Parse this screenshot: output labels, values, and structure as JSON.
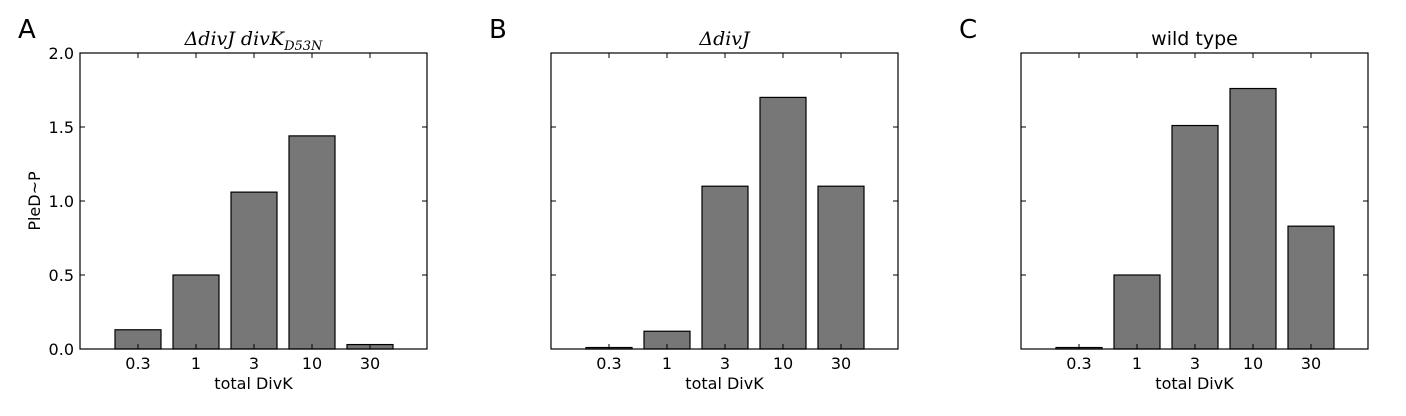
{
  "chart_data": [
    {
      "type": "bar",
      "panel_letter": "A",
      "title": "ΔdivJ divK",
      "title_subscript": "D53N",
      "xlabel": "total DivK",
      "ylabel": "PleD~P",
      "categories": [
        "0.3",
        "1",
        "3",
        "10",
        "30"
      ],
      "values": [
        0.13,
        0.5,
        1.06,
        1.44,
        0.03
      ],
      "ylim": [
        0,
        2.0
      ],
      "yticks": [
        "0.0",
        "0.5",
        "1.0",
        "1.5",
        "2.0"
      ],
      "bar_color": "#777777",
      "grid": false
    },
    {
      "type": "bar",
      "panel_letter": "B",
      "title": "ΔdivJ",
      "xlabel": "total DivK",
      "ylabel": "",
      "categories": [
        "0.3",
        "1",
        "3",
        "10",
        "30"
      ],
      "values": [
        0.01,
        0.12,
        1.1,
        1.7,
        1.1
      ],
      "ylim": [
        0,
        2.0
      ],
      "yticks": [],
      "bar_color": "#777777",
      "grid": false
    },
    {
      "type": "bar",
      "panel_letter": "C",
      "title": "wild type",
      "xlabel": "total DivK",
      "ylabel": "",
      "categories": [
        "0.3",
        "1",
        "3",
        "10",
        "30"
      ],
      "values": [
        0.01,
        0.5,
        1.51,
        1.76,
        0.83
      ],
      "ylim": [
        0,
        2.0
      ],
      "yticks": [],
      "bar_color": "#777777",
      "grid": false
    }
  ]
}
